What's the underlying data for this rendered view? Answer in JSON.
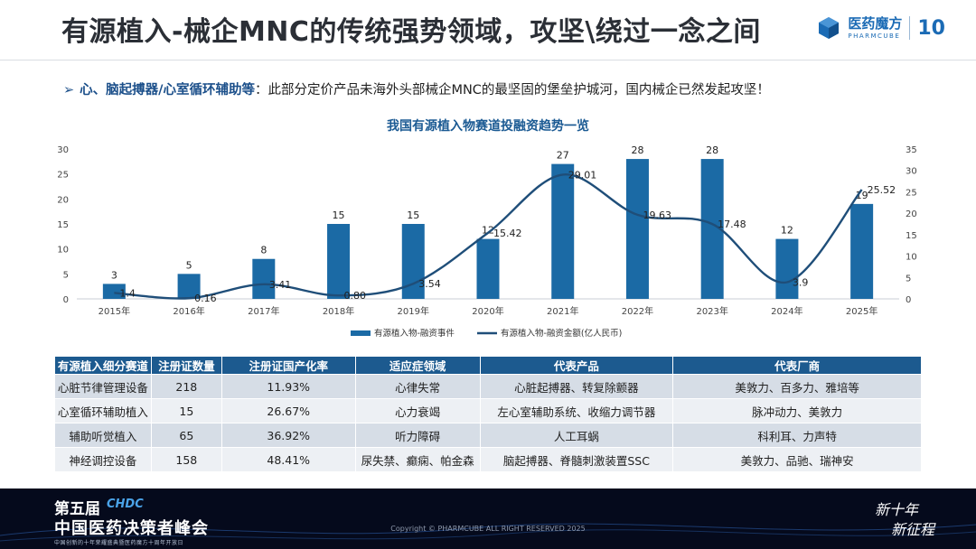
{
  "page": {
    "title": "有源植入-械企MNC的传统强势领域，攻坚\\绕过一念之间",
    "bullet_marker": "➢",
    "bullet_strong": "心、脑起搏器/心室循环辅助等",
    "bullet_text": "：此部分定价产品未海外头部械企MNC的最坚固的堡垒护城河，国内械企已然发起攻坚！"
  },
  "brand": {
    "name_cn": "医药魔方",
    "name_en": "PHARMCUBE",
    "anniversary": "10",
    "color": "#1b6bb5"
  },
  "chart_data": {
    "type": "bar",
    "title": "我国有源植入物赛道投融资趋势一览",
    "categories": [
      "2015年",
      "2016年",
      "2017年",
      "2018年",
      "2019年",
      "2020年",
      "2021年",
      "2022年",
      "2023年",
      "2024年",
      "2025年"
    ],
    "series": [
      {
        "name": "有源植入物-融资事件",
        "type": "bar",
        "axis": "left",
        "color": "#1b6aa5",
        "values": [
          3,
          5,
          8,
          15,
          15,
          12,
          27,
          28,
          28,
          12,
          19
        ]
      },
      {
        "name": "有源植入物-融资金额(亿人民币)",
        "type": "line",
        "axis": "right",
        "color": "#1f4e79",
        "values": [
          1.4,
          0.16,
          3.41,
          0.8,
          3.54,
          15.42,
          29.01,
          19.63,
          17.48,
          3.9,
          25.52
        ],
        "labels": [
          "1.4",
          "0.16",
          "3.41",
          "0.80",
          "3.54",
          "15.42",
          "29.01",
          "19.63",
          "17.48",
          "3.9",
          "25.52"
        ]
      }
    ],
    "left_axis": {
      "ticks": [
        0,
        5,
        10,
        15,
        20,
        25,
        30
      ],
      "ylim": [
        0,
        30
      ]
    },
    "right_axis": {
      "ticks": [
        0,
        5,
        10,
        15,
        20,
        25,
        30,
        35
      ],
      "ylim": [
        0,
        35
      ]
    },
    "grid": false,
    "legend": "bottom-center"
  },
  "table": {
    "headers": [
      "有源植入细分赛道",
      "注册证数量",
      "注册证国产化率",
      "适应症领域",
      "代表产品",
      "代表厂商"
    ],
    "rows": [
      [
        "心脏节律管理设备",
        "218",
        "11.93%",
        "心律失常",
        "心脏起搏器、转复除颤器",
        "美敦力、百多力、雅培等"
      ],
      [
        "心室循环辅助植入",
        "15",
        "26.67%",
        "心力衰竭",
        "左心室辅助系统、收缩力调节器",
        "脉冲动力、美敦力"
      ],
      [
        "辅助听觉植入",
        "65",
        "36.92%",
        "听力障碍",
        "人工耳蜗",
        "科利耳、力声特"
      ],
      [
        "神经调控设备",
        "158",
        "48.41%",
        "尿失禁、癫痫、帕金森",
        "脑起搏器、脊髓刺激装置SSC",
        "美敦力、品驰、瑞神安"
      ]
    ]
  },
  "footer": {
    "edition": "第五届",
    "chdc": "CHDC",
    "event": "中国医药决策者峰会",
    "tagline": "中国创新的十年荣耀盛典暨医药魔方十周年开放日",
    "copyright": "Copyright © PHARMCUBE ALL RIGHT RESERVED 2025",
    "slogan_1": "新十年",
    "slogan_2": "新征程"
  }
}
